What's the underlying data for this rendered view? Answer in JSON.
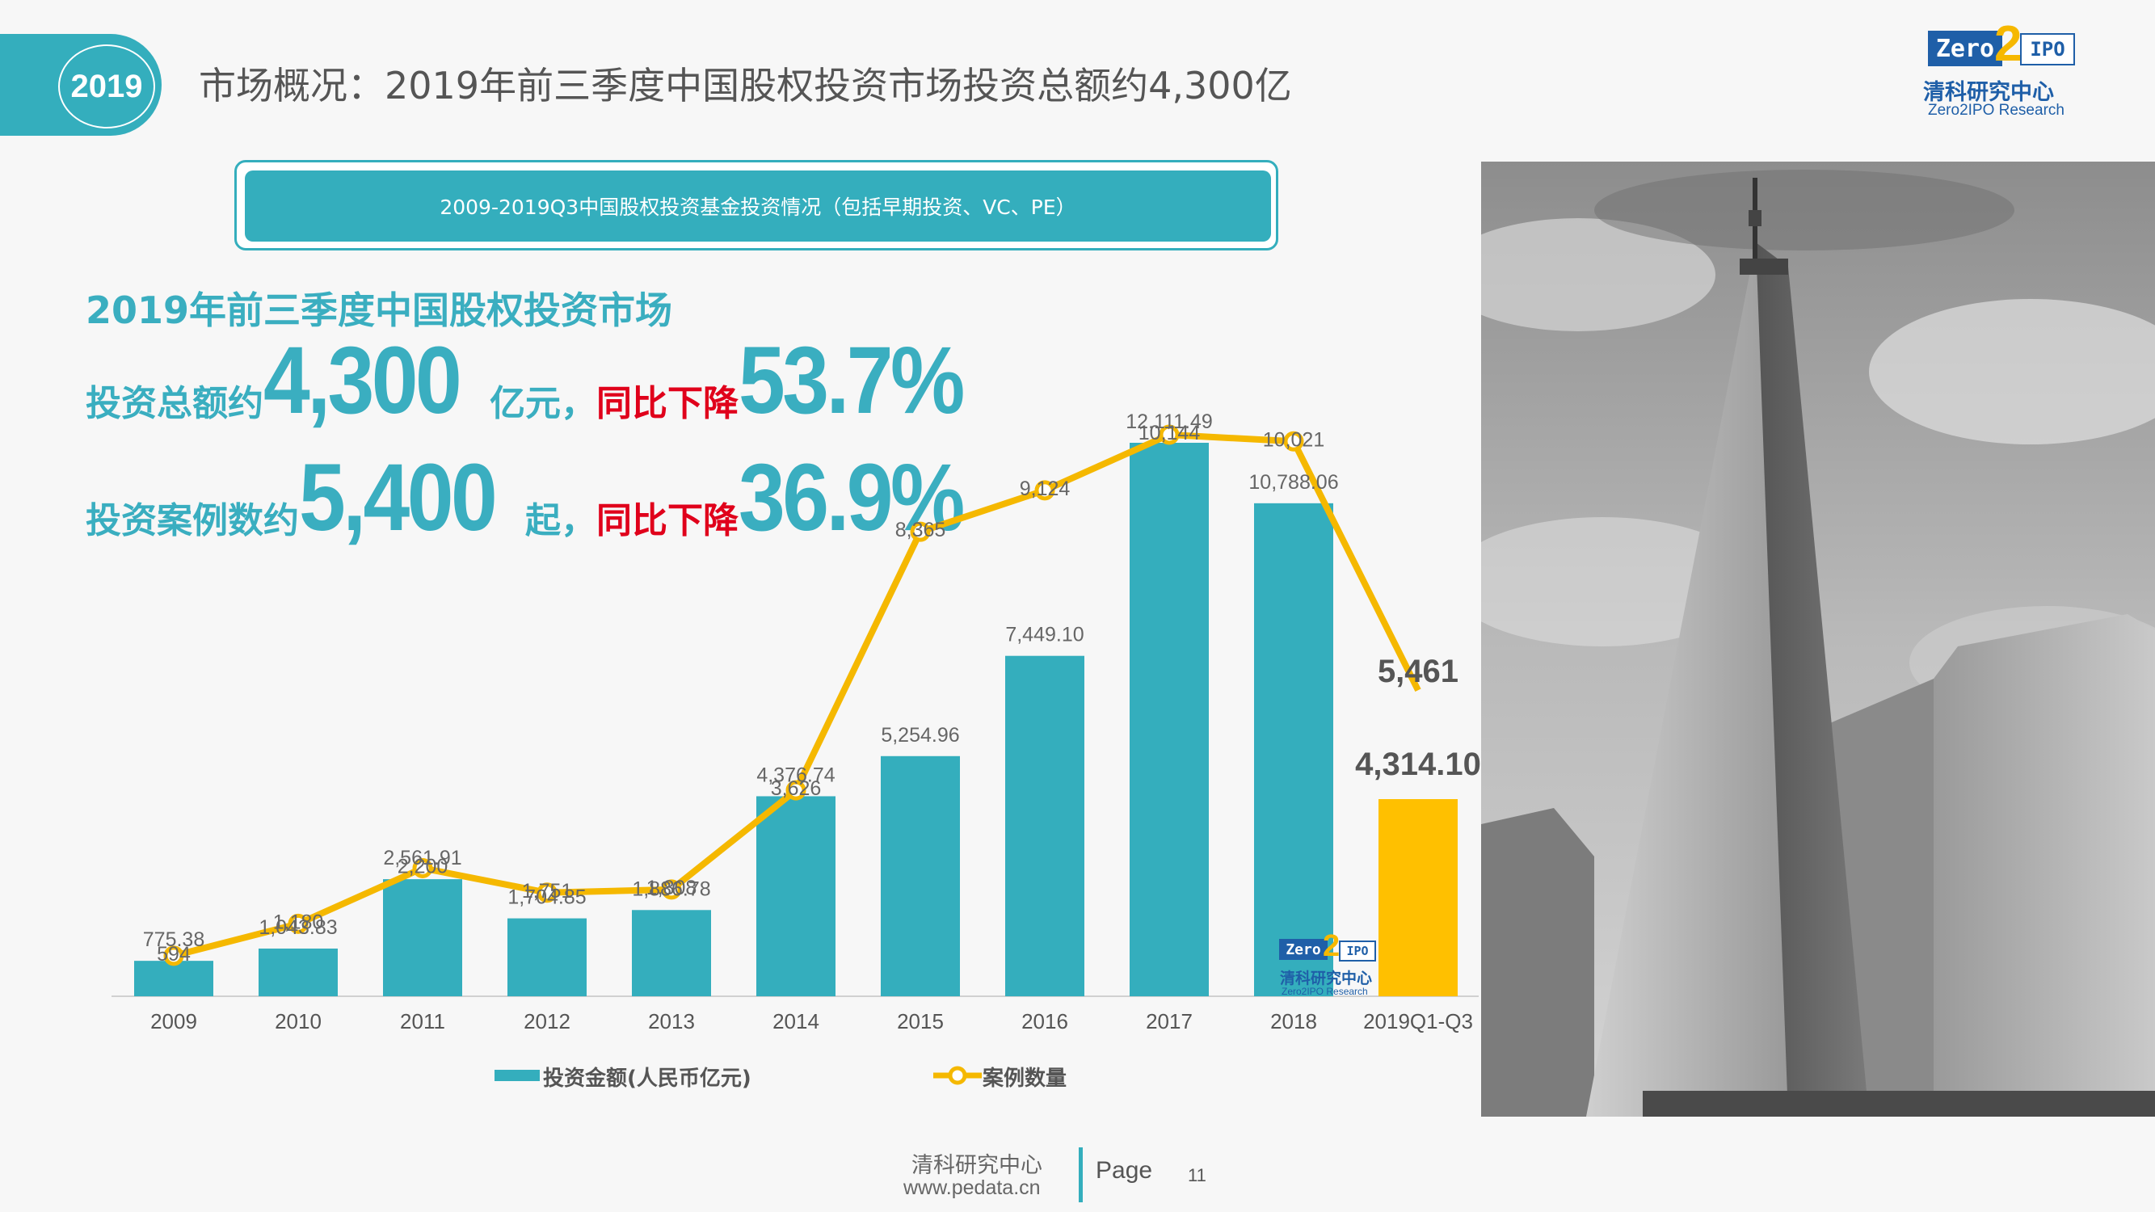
{
  "header": {
    "year_badge": "2019",
    "title": "市场概况：2019年前三季度中国股权投资市场投资总额约4,300亿"
  },
  "logo": {
    "zero": "Zero",
    "two": "2",
    "ipo": "IPO",
    "cn": "清科研究中心",
    "en": "Zero2IPO Research"
  },
  "banner": {
    "text": "2009-2019Q3中国股权投资基金投资情况（包括早期投资、VC、PE）"
  },
  "kpi": {
    "heading": "2019年前三季度中国股权投资市场",
    "line1": {
      "prefix": "投资总额约",
      "value": "4,300",
      "unit": "亿元，",
      "change_label": "同比下降",
      "change_value": "53.7%"
    },
    "line2": {
      "prefix": "投资案例数约",
      "value": "5,400",
      "unit": "起，",
      "change_label": "同比下降",
      "change_value": "36.9%"
    }
  },
  "chart_data": {
    "type": "bar",
    "categories": [
      "2009",
      "2010",
      "2011",
      "2012",
      "2013",
      "2014",
      "2015",
      "2016",
      "2017",
      "2018",
      "2019Q1-Q3"
    ],
    "series": [
      {
        "name": "投资金额(人民币亿元)",
        "type": "bar",
        "color": "#34aebd",
        "highlight_color": "#ffc000",
        "values": [
          775.38,
          1043.83,
          2561.91,
          1704.85,
          1886.78,
          4376.74,
          5254.96,
          7449.1,
          12111.49,
          10788.06,
          4314.1
        ],
        "labels": [
          "775.38",
          "1,043.83",
          "2,561.91",
          "1,704.85",
          "1,886.78",
          "4,376.74",
          "5,254.96",
          "7,449.10",
          "12,111.49",
          "10,788.06",
          "4,314.10"
        ]
      },
      {
        "name": "案例数量",
        "type": "line",
        "color": "#f5b800",
        "values": [
          594,
          1180,
          2200,
          1751,
          1808,
          3626,
          8365,
          9124,
          10144,
          10021,
          5461
        ],
        "labels": [
          "594",
          "1,180",
          "2,200",
          "1,751",
          "1,808",
          "3,626",
          "8,365",
          "9,124",
          "10,144",
          "10,021",
          "5,461"
        ]
      }
    ],
    "legend_position": "bottom",
    "grid": false
  },
  "watermark": {
    "zero": "Zero",
    "two": "2",
    "ipo": "IPO",
    "cn": "清科研究中心",
    "en": "Zero2IPO Research"
  },
  "footer": {
    "org": "清科研究中心",
    "url": "www.pedata.cn",
    "page_label": "Page",
    "page_number": "11"
  }
}
